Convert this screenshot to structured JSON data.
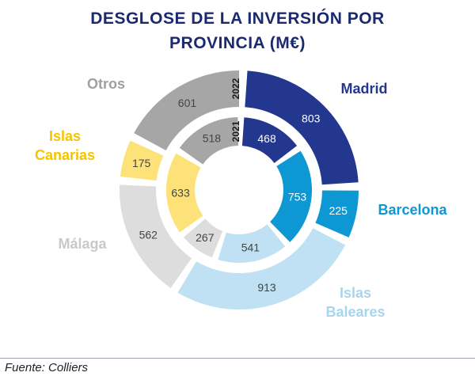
{
  "chart_data": {
    "type": "donut",
    "title_lines": [
      "DESGLOSE DE LA INVERSIÓN POR",
      "PROVINCIA (M€)"
    ],
    "rings": [
      {
        "name": "2022",
        "values": [
          {
            "category": "Madrid",
            "value": 803
          },
          {
            "category": "Barcelona",
            "value": 225
          },
          {
            "category": "Islas Baleares",
            "value": 913
          },
          {
            "category": "Málaga",
            "value": 562
          },
          {
            "category": "Islas Canarias",
            "value": 175
          },
          {
            "category": "Otros",
            "value": 601
          }
        ]
      },
      {
        "name": "2021",
        "values": [
          {
            "category": "Madrid",
            "value": 468
          },
          {
            "category": "Barcelona",
            "value": 753
          },
          {
            "category": "Islas Baleares",
            "value": 541
          },
          {
            "category": "Málaga",
            "value": 267
          },
          {
            "category": "Islas Canarias",
            "value": 633
          },
          {
            "category": "Otros",
            "value": 518
          }
        ]
      }
    ],
    "categories": [
      {
        "name": "Madrid",
        "label_lines": [
          "Madrid"
        ],
        "color": "#23378f",
        "label_color": "#23378f"
      },
      {
        "name": "Barcelona",
        "label_lines": [
          "Barcelona"
        ],
        "color": "#0d98d4",
        "label_color": "#0d98d4"
      },
      {
        "name": "Islas Baleares",
        "label_lines": [
          "Islas",
          "Baleares"
        ],
        "color": "#bfe1f3",
        "label_color": "#a8d5ee"
      },
      {
        "name": "Málaga",
        "label_lines": [
          "Málaga"
        ],
        "color": "#dddddd",
        "label_color": "#c9c9c9"
      },
      {
        "name": "Islas Canarias",
        "label_lines": [
          "Islas",
          "Canarias"
        ],
        "color": "#fde27a",
        "label_color": "#f5c400"
      },
      {
        "name": "Otros",
        "label_lines": [
          "Otros"
        ],
        "color": "#a6a6a6",
        "label_color": "#a0a0a0"
      }
    ]
  },
  "source": "Fuente: Colliers"
}
